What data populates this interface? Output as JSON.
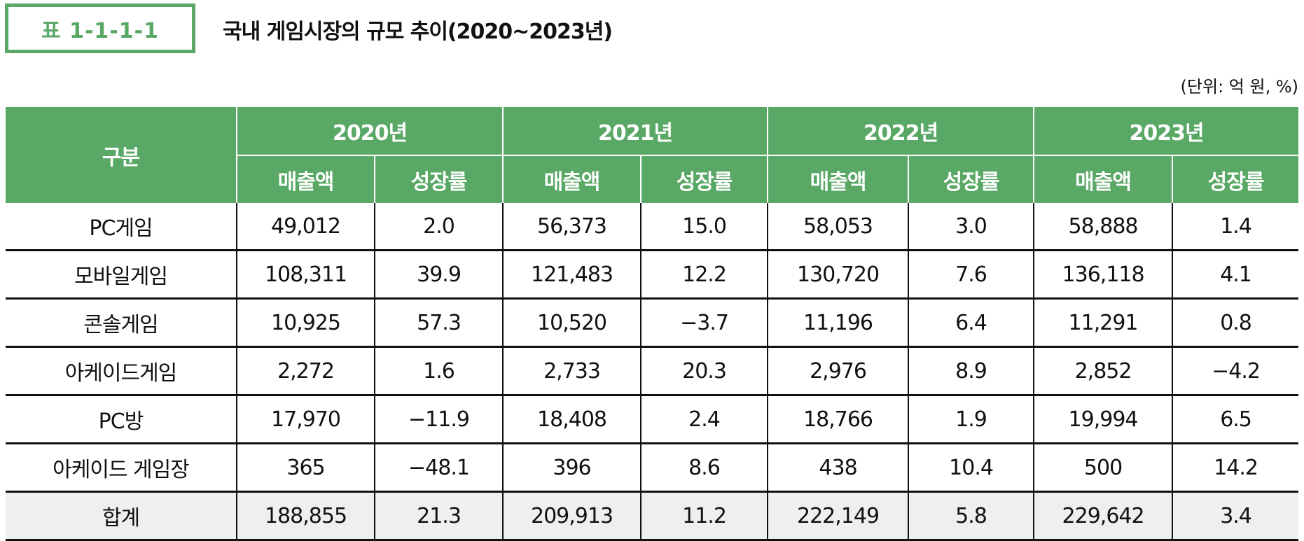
{
  "caption": {
    "label": "표 1-1-1-1",
    "title": "국내 게임시장의 규모 추이(2020~2023년)",
    "unit": "(단위: 억 원, %)",
    "accent_color": "#5aa865"
  },
  "table": {
    "header": {
      "category": "구분",
      "years": [
        "2020년",
        "2021년",
        "2022년",
        "2023년"
      ],
      "sub": [
        "매출액",
        "성장률"
      ]
    },
    "rows": [
      {
        "name": "PC게임",
        "values": [
          "49,012",
          "2.0",
          "56,373",
          "15.0",
          "58,053",
          "3.0",
          "58,888",
          "1.4"
        ]
      },
      {
        "name": "모바일게임",
        "values": [
          "108,311",
          "39.9",
          "121,483",
          "12.2",
          "130,720",
          "7.6",
          "136,118",
          "4.1"
        ]
      },
      {
        "name": "콘솔게임",
        "values": [
          "10,925",
          "57.3",
          "10,520",
          "−3.7",
          "11,196",
          "6.4",
          "11,291",
          "0.8"
        ]
      },
      {
        "name": "아케이드게임",
        "values": [
          "2,272",
          "1.6",
          "2,733",
          "20.3",
          "2,976",
          "8.9",
          "2,852",
          "−4.2"
        ]
      },
      {
        "name": "PC방",
        "values": [
          "17,970",
          "−11.9",
          "18,408",
          "2.4",
          "18,766",
          "1.9",
          "19,994",
          "6.5"
        ]
      },
      {
        "name": "아케이드 게임장",
        "values": [
          "365",
          "−48.1",
          "396",
          "8.6",
          "438",
          "10.4",
          "500",
          "14.2"
        ]
      }
    ],
    "total": {
      "name": "합계",
      "values": [
        "188,855",
        "21.3",
        "209,913",
        "11.2",
        "222,149",
        "5.8",
        "229,642",
        "3.4"
      ]
    }
  }
}
